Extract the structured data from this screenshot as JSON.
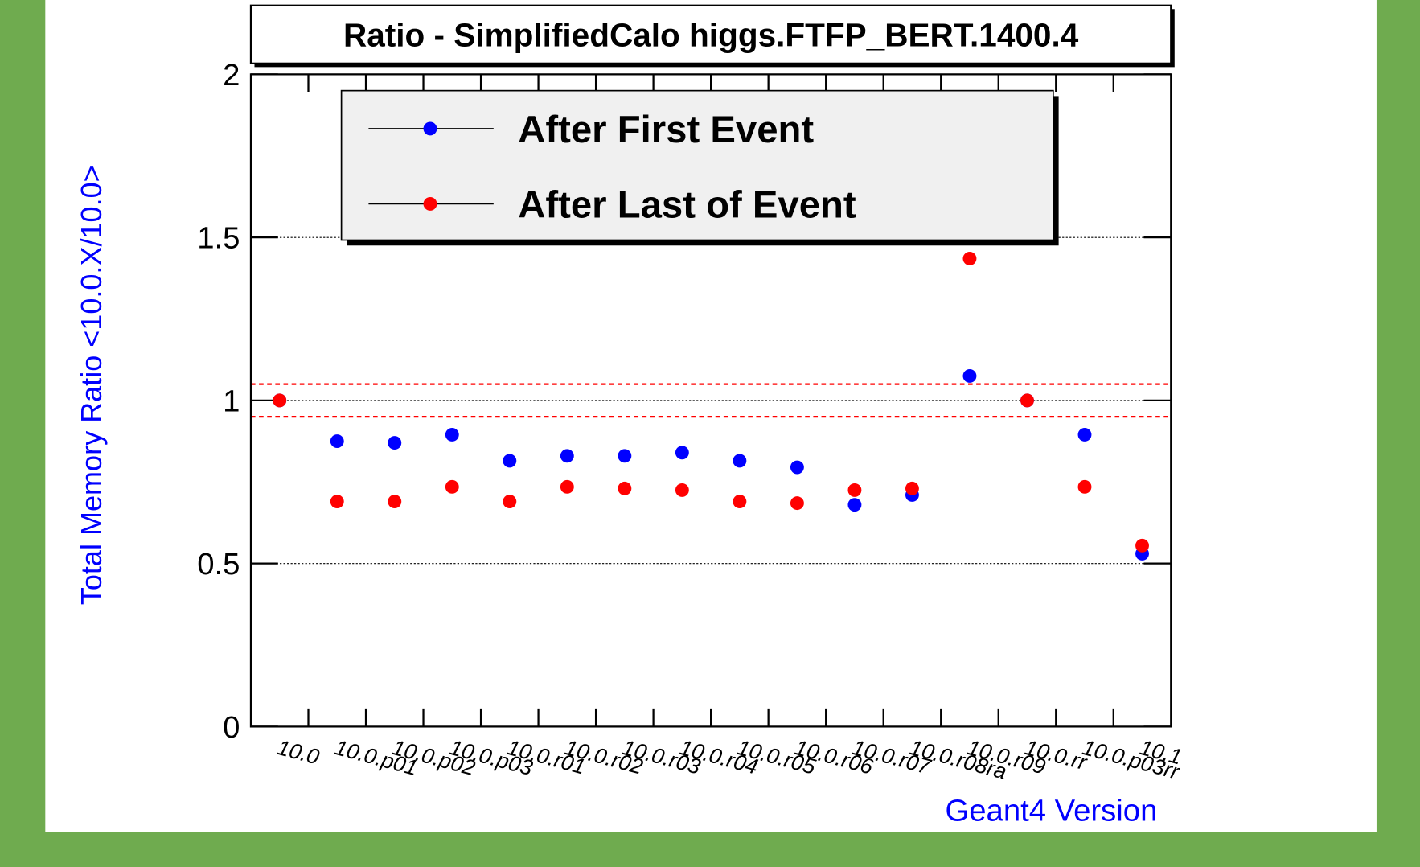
{
  "chart_data": {
    "type": "scatter",
    "title": "Ratio - SimplifiedCalo higgs.FTFP_BERT.1400.4",
    "x_label": "Geant4 Version",
    "y_label": "Total Memory Ratio <10.0.X/10.0>",
    "categories": [
      "10.0",
      "10.0.p01",
      "10.0.p02",
      "10.0.p03",
      "10.0.r01",
      "10.0.r02",
      "10.0.r03",
      "10.0.r04",
      "10.0.r05",
      "10.0.r06",
      "10.0.r07",
      "10.0.r08ra",
      "10.0.r09",
      "10.0.rr",
      "10.0.p03rr",
      "10.1"
    ],
    "series": [
      {
        "name": "After First Event",
        "color": "#0000ff",
        "values": [
          1.0,
          0.875,
          0.87,
          0.895,
          0.815,
          0.83,
          0.83,
          0.84,
          0.815,
          0.795,
          0.68,
          0.71,
          1.075,
          1.0,
          0.895,
          0.53
        ]
      },
      {
        "name": "After Last of Event",
        "color": "#ff0000",
        "values": [
          1.0,
          0.69,
          0.69,
          0.735,
          0.69,
          0.735,
          0.73,
          0.725,
          0.69,
          0.685,
          0.725,
          0.73,
          1.435,
          1.0,
          0.735,
          0.555
        ]
      }
    ],
    "reference_lines": [
      0.95,
      1.05
    ],
    "reference_color": "#ff0000",
    "ylim": [
      0,
      2
    ],
    "yticks": [
      0,
      0.5,
      1,
      1.5,
      2
    ],
    "grid": true
  }
}
